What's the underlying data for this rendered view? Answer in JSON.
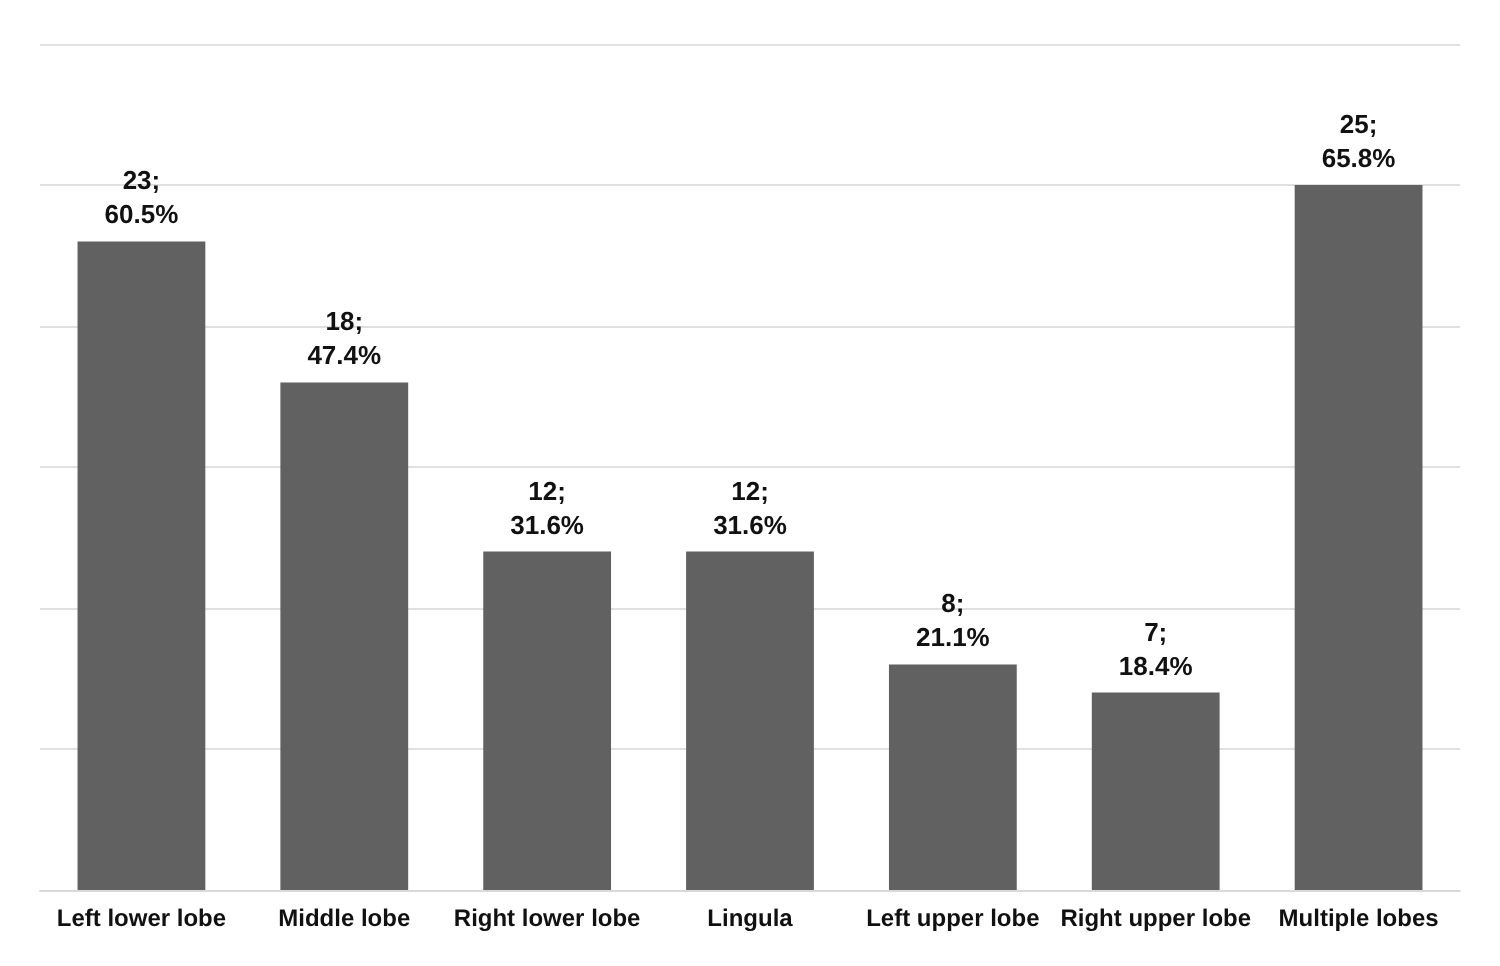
{
  "chart_data": {
    "type": "bar",
    "categories": [
      "Left lower lobe",
      "Middle lobe",
      "Right lower lobe",
      "Lingula",
      "Left upper lobe",
      "Right upper lobe",
      "Multiple lobes"
    ],
    "values": [
      23,
      18,
      12,
      12,
      8,
      7,
      25
    ],
    "value_labels": [
      "23;\n60.5%",
      "18;\n47.4%",
      "12;\n31.6%",
      "12;\n31.6%",
      "8;\n21.1%",
      "7;\n18.4%",
      "25;\n65.8%"
    ],
    "color": "#616161",
    "ylim": [
      0,
      30
    ],
    "yticks": [
      {
        "value": 0,
        "label": null
      },
      {
        "value": 5,
        "label": null
      },
      {
        "value": 10,
        "label": null
      },
      {
        "value": 15,
        "label": null
      },
      {
        "value": 20,
        "label": null
      },
      {
        "value": 25,
        "label": null
      },
      {
        "value": 30,
        "label": null
      }
    ],
    "grid": "y",
    "tick_labels": "x"
  }
}
